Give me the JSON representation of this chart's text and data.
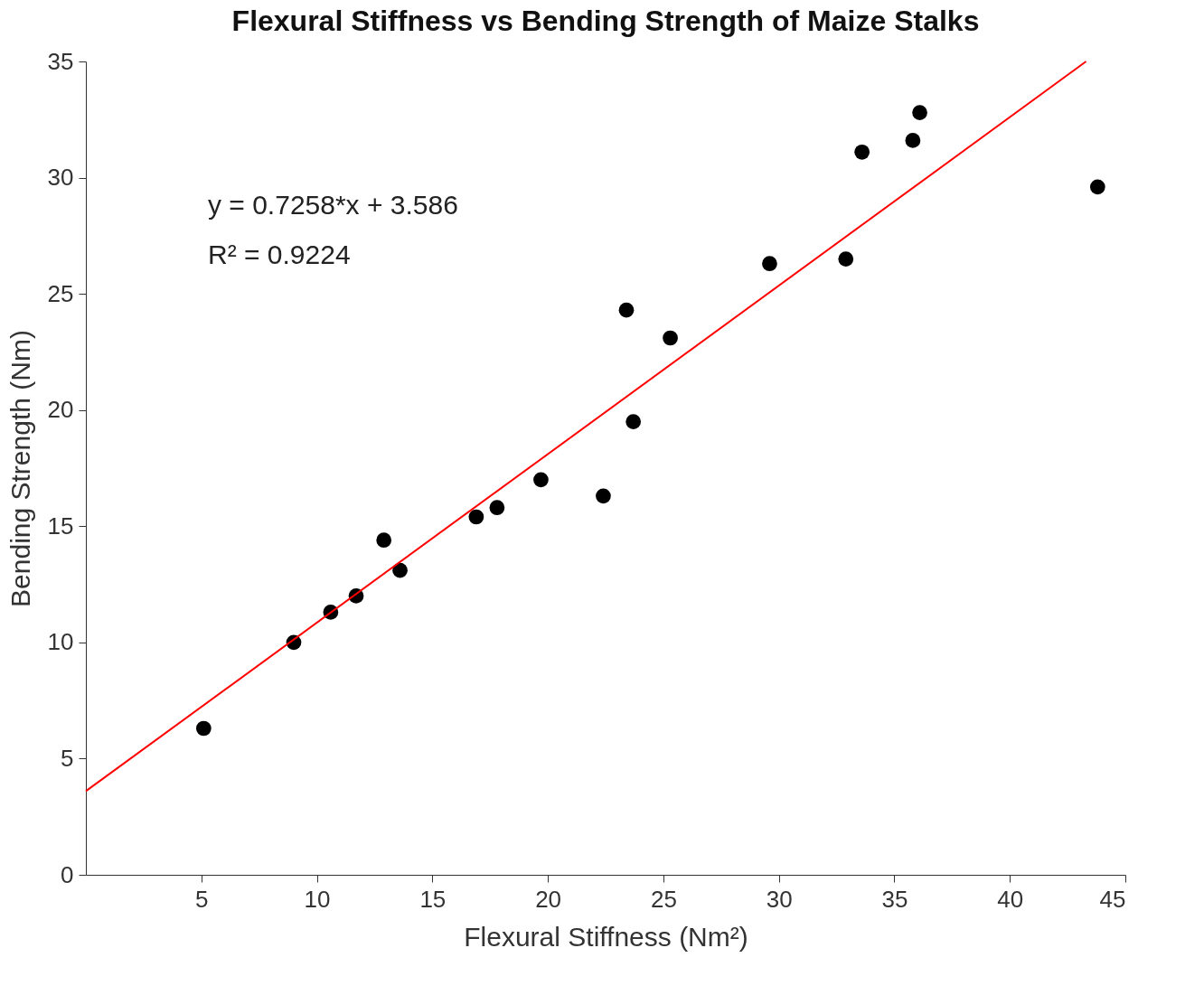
{
  "chart_data": {
    "type": "scatter",
    "title": "Flexural Stiffness vs Bending Strength of Maize Stalks",
    "xlabel": "Flexural Stiffness (Nm²)",
    "ylabel": "Bending Strength (Nm)",
    "x": [
      5.1,
      9.0,
      10.6,
      11.7,
      12.9,
      13.6,
      16.9,
      17.8,
      19.7,
      22.4,
      23.4,
      23.7,
      25.3,
      29.6,
      32.9,
      33.6,
      35.8,
      36.1,
      43.8
    ],
    "series": [
      {
        "color": "#000000",
        "marker": "circle",
        "values": [
          6.3,
          10.0,
          11.3,
          12.0,
          14.4,
          13.1,
          15.4,
          15.8,
          17.0,
          16.3,
          24.3,
          19.5,
          23.1,
          26.3,
          26.5,
          31.1,
          31.6,
          32.8,
          29.6
        ]
      },
      {
        "type": "line",
        "color": "#ff0000",
        "x": [
          0,
          43.3
        ],
        "values": [
          3.6,
          35.0
        ],
        "marker": "none",
        "line_style": "solid"
      }
    ],
    "xlim": [
      0,
      45
    ],
    "xticks": [
      5,
      10,
      15,
      20,
      25,
      30,
      35,
      40,
      45
    ],
    "ylim": [
      0,
      35
    ],
    "yticks": [
      0,
      5,
      10,
      15,
      20,
      25,
      30,
      35
    ],
    "annotations": [
      "y = 0.7258*x + 3.586",
      "R² = 0.9224"
    ]
  }
}
